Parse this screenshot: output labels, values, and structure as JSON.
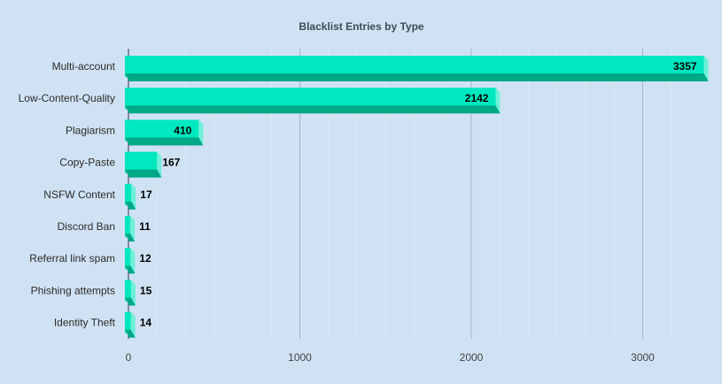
{
  "chart_data": {
    "type": "bar",
    "orientation": "horizontal",
    "title": "Blacklist Entries by Type",
    "xlabel": "",
    "ylabel": "",
    "categories": [
      "Multi-account",
      "Low-Content-Quality",
      "Plagiarism",
      "Copy-Paste",
      "NSFW Content",
      "Discord Ban",
      "Referral link spam",
      "Phishing attempts",
      "Identity Theft"
    ],
    "values": [
      3357,
      2142,
      410,
      167,
      17,
      11,
      12,
      15,
      14
    ],
    "xlim": [
      0,
      3400
    ],
    "xticks": [
      0,
      1000,
      2000,
      3000
    ],
    "grid": true,
    "legend": "none",
    "colors": {
      "background": "#cfe2f3",
      "bar_front": "#00e8c0",
      "bar_top": "#6ff0d8",
      "bar_side": "#00a887",
      "grid_major": "#a3b4c4",
      "grid_minor": "#dde8f2"
    }
  }
}
